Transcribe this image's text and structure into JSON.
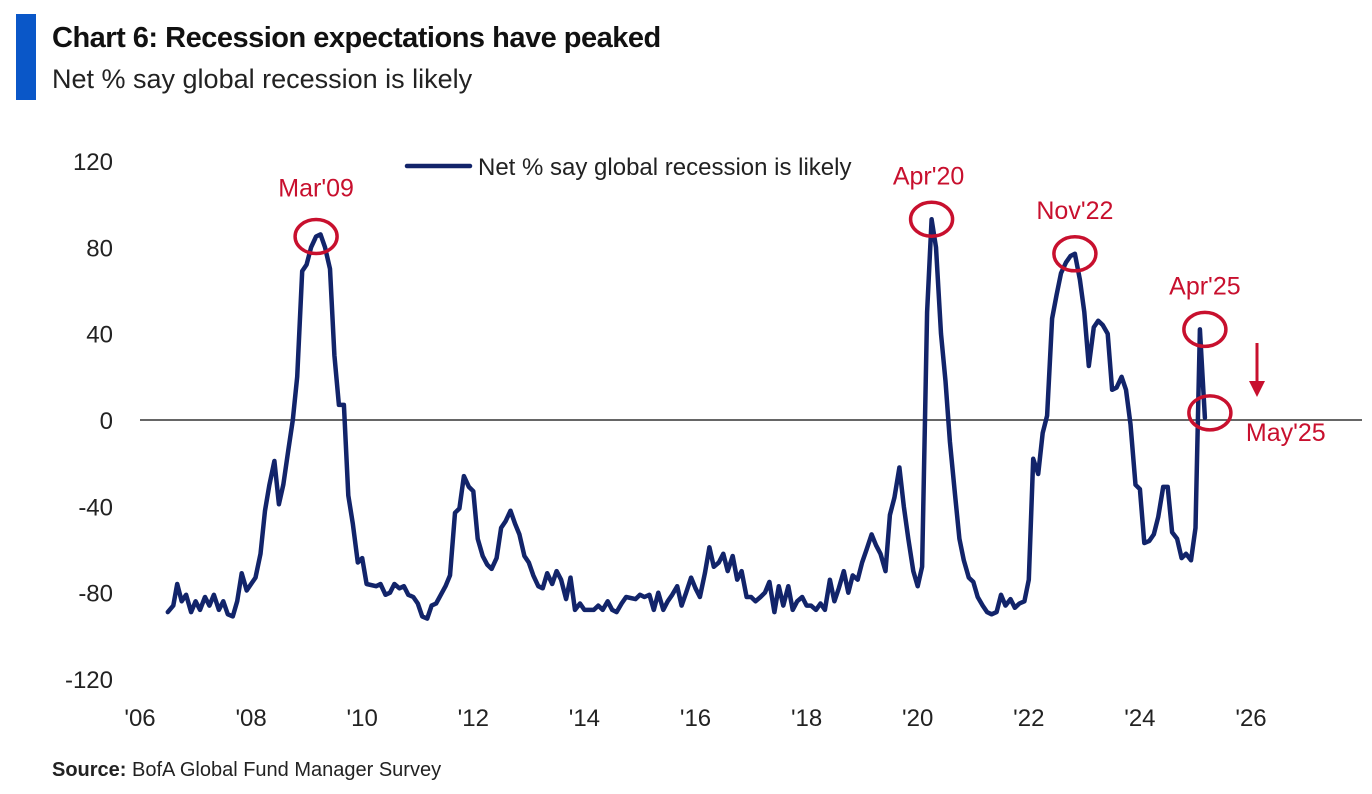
{
  "header": {
    "title": "Chart 6: Recession expectations have peaked",
    "subtitle": "Net % say global recession is likely"
  },
  "footer": {
    "source_label": "Source:",
    "source_text": " BofA Global Fund Manager Survey"
  },
  "colors": {
    "accent": "#0a57c8",
    "series": "#12246a",
    "annotation": "#c8102e",
    "axis": "#333333"
  },
  "chart_data": {
    "type": "line",
    "title": "Chart 6: Recession expectations have peaked",
    "subtitle": "Net % say global recession is likely",
    "xlabel": "",
    "ylabel": "",
    "xlim": [
      2006.0,
      2027.5
    ],
    "ylim": [
      -120,
      120
    ],
    "yticks": [
      120,
      80,
      40,
      0,
      -40,
      -80,
      -120
    ],
    "xticks": [
      {
        "value": 2006,
        "label": "'06"
      },
      {
        "value": 2008,
        "label": "'08"
      },
      {
        "value": 2010,
        "label": "'10"
      },
      {
        "value": 2012,
        "label": "'12"
      },
      {
        "value": 2014,
        "label": "'14"
      },
      {
        "value": 2016,
        "label": "'16"
      },
      {
        "value": 2018,
        "label": "'18"
      },
      {
        "value": 2020,
        "label": "'20"
      },
      {
        "value": 2022,
        "label": "'22"
      },
      {
        "value": 2024,
        "label": "'24"
      },
      {
        "value": 2026,
        "label": "'26"
      }
    ],
    "grid": false,
    "zero_line": true,
    "legend": {
      "position": "top-center"
    },
    "series": [
      {
        "name": "Net % say global recession is likely",
        "points": [
          [
            2006.5,
            -89
          ],
          [
            2006.6,
            -86
          ],
          [
            2006.67,
            -76
          ],
          [
            2006.75,
            -84
          ],
          [
            2006.83,
            -81
          ],
          [
            2006.92,
            -89
          ],
          [
            2007.0,
            -84
          ],
          [
            2007.08,
            -88
          ],
          [
            2007.17,
            -82
          ],
          [
            2007.25,
            -86
          ],
          [
            2007.33,
            -81
          ],
          [
            2007.42,
            -88
          ],
          [
            2007.5,
            -84
          ],
          [
            2007.58,
            -90
          ],
          [
            2007.67,
            -91
          ],
          [
            2007.75,
            -84
          ],
          [
            2007.83,
            -71
          ],
          [
            2007.92,
            -79
          ],
          [
            2008.0,
            -76
          ],
          [
            2008.08,
            -73
          ],
          [
            2008.17,
            -62
          ],
          [
            2008.25,
            -42
          ],
          [
            2008.33,
            -30
          ],
          [
            2008.42,
            -19
          ],
          [
            2008.5,
            -39
          ],
          [
            2008.58,
            -30
          ],
          [
            2008.67,
            -14
          ],
          [
            2008.75,
            0
          ],
          [
            2008.83,
            20
          ],
          [
            2008.92,
            69
          ],
          [
            2009.0,
            72
          ],
          [
            2009.08,
            80
          ],
          [
            2009.17,
            85
          ],
          [
            2009.25,
            86
          ],
          [
            2009.33,
            80
          ],
          [
            2009.42,
            70
          ],
          [
            2009.5,
            30
          ],
          [
            2009.58,
            7
          ],
          [
            2009.67,
            7
          ],
          [
            2009.75,
            -35
          ],
          [
            2009.83,
            -48
          ],
          [
            2009.92,
            -66
          ],
          [
            2010.0,
            -64
          ],
          [
            2010.08,
            -76
          ],
          [
            2010.25,
            -77
          ],
          [
            2010.33,
            -76
          ],
          [
            2010.42,
            -81
          ],
          [
            2010.5,
            -80
          ],
          [
            2010.58,
            -76
          ],
          [
            2010.67,
            -78
          ],
          [
            2010.75,
            -77
          ],
          [
            2010.83,
            -81
          ],
          [
            2010.92,
            -82
          ],
          [
            2011.0,
            -85
          ],
          [
            2011.08,
            -91
          ],
          [
            2011.17,
            -92
          ],
          [
            2011.25,
            -86
          ],
          [
            2011.33,
            -85
          ],
          [
            2011.5,
            -77
          ],
          [
            2011.58,
            -72
          ],
          [
            2011.67,
            -43
          ],
          [
            2011.75,
            -41
          ],
          [
            2011.83,
            -26
          ],
          [
            2011.92,
            -31
          ],
          [
            2012.0,
            -33
          ],
          [
            2012.08,
            -55
          ],
          [
            2012.17,
            -63
          ],
          [
            2012.25,
            -67
          ],
          [
            2012.33,
            -69
          ],
          [
            2012.42,
            -64
          ],
          [
            2012.5,
            -50
          ],
          [
            2012.58,
            -47
          ],
          [
            2012.67,
            -42
          ],
          [
            2012.75,
            -48
          ],
          [
            2012.83,
            -53
          ],
          [
            2012.92,
            -63
          ],
          [
            2013.0,
            -66
          ],
          [
            2013.08,
            -72
          ],
          [
            2013.17,
            -77
          ],
          [
            2013.25,
            -78
          ],
          [
            2013.33,
            -71
          ],
          [
            2013.42,
            -76
          ],
          [
            2013.5,
            -70
          ],
          [
            2013.58,
            -74
          ],
          [
            2013.67,
            -83
          ],
          [
            2013.75,
            -73
          ],
          [
            2013.83,
            -88
          ],
          [
            2013.92,
            -85
          ],
          [
            2014.0,
            -88
          ],
          [
            2014.17,
            -88
          ],
          [
            2014.25,
            -86
          ],
          [
            2014.33,
            -88
          ],
          [
            2014.42,
            -84
          ],
          [
            2014.5,
            -88
          ],
          [
            2014.58,
            -89
          ],
          [
            2014.67,
            -85
          ],
          [
            2014.75,
            -82
          ],
          [
            2014.92,
            -83
          ],
          [
            2015.0,
            -81
          ],
          [
            2015.08,
            -82
          ],
          [
            2015.17,
            -81
          ],
          [
            2015.25,
            -88
          ],
          [
            2015.33,
            -80
          ],
          [
            2015.42,
            -88
          ],
          [
            2015.5,
            -84
          ],
          [
            2015.58,
            -81
          ],
          [
            2015.67,
            -77
          ],
          [
            2015.75,
            -86
          ],
          [
            2015.83,
            -80
          ],
          [
            2015.92,
            -73
          ],
          [
            2016.0,
            -78
          ],
          [
            2016.08,
            -82
          ],
          [
            2016.17,
            -71
          ],
          [
            2016.25,
            -59
          ],
          [
            2016.33,
            -68
          ],
          [
            2016.42,
            -66
          ],
          [
            2016.5,
            -62
          ],
          [
            2016.58,
            -70
          ],
          [
            2016.67,
            -63
          ],
          [
            2016.75,
            -74
          ],
          [
            2016.83,
            -70
          ],
          [
            2016.92,
            -82
          ],
          [
            2017.0,
            -82
          ],
          [
            2017.08,
            -84
          ],
          [
            2017.17,
            -82
          ],
          [
            2017.25,
            -80
          ],
          [
            2017.33,
            -75
          ],
          [
            2017.42,
            -89
          ],
          [
            2017.5,
            -77
          ],
          [
            2017.58,
            -86
          ],
          [
            2017.67,
            -77
          ],
          [
            2017.75,
            -88
          ],
          [
            2017.83,
            -84
          ],
          [
            2017.92,
            -82
          ],
          [
            2018.0,
            -86
          ],
          [
            2018.08,
            -86
          ],
          [
            2018.17,
            -88
          ],
          [
            2018.25,
            -85
          ],
          [
            2018.33,
            -88
          ],
          [
            2018.42,
            -74
          ],
          [
            2018.5,
            -84
          ],
          [
            2018.58,
            -78
          ],
          [
            2018.67,
            -70
          ],
          [
            2018.75,
            -80
          ],
          [
            2018.83,
            -72
          ],
          [
            2018.92,
            -74
          ],
          [
            2019.0,
            -66
          ],
          [
            2019.08,
            -60
          ],
          [
            2019.17,
            -53
          ],
          [
            2019.25,
            -58
          ],
          [
            2019.33,
            -62
          ],
          [
            2019.42,
            -70
          ],
          [
            2019.5,
            -44
          ],
          [
            2019.58,
            -36
          ],
          [
            2019.67,
            -22
          ],
          [
            2019.75,
            -40
          ],
          [
            2019.83,
            -55
          ],
          [
            2019.92,
            -70
          ],
          [
            2020.0,
            -77
          ],
          [
            2020.08,
            -68
          ],
          [
            2020.17,
            50
          ],
          [
            2020.25,
            93
          ],
          [
            2020.33,
            80
          ],
          [
            2020.42,
            40
          ],
          [
            2020.5,
            18
          ],
          [
            2020.58,
            -10
          ],
          [
            2020.67,
            -34
          ],
          [
            2020.75,
            -55
          ],
          [
            2020.83,
            -65
          ],
          [
            2020.92,
            -73
          ],
          [
            2021.0,
            -75
          ],
          [
            2021.08,
            -82
          ],
          [
            2021.17,
            -86
          ],
          [
            2021.25,
            -89
          ],
          [
            2021.33,
            -90
          ],
          [
            2021.42,
            -89
          ],
          [
            2021.5,
            -81
          ],
          [
            2021.58,
            -86
          ],
          [
            2021.67,
            -83
          ],
          [
            2021.75,
            -87
          ],
          [
            2021.83,
            -85
          ],
          [
            2021.92,
            -84
          ],
          [
            2022.0,
            -74
          ],
          [
            2022.08,
            -18
          ],
          [
            2022.17,
            -25
          ],
          [
            2022.25,
            -6
          ],
          [
            2022.33,
            2
          ],
          [
            2022.42,
            47
          ],
          [
            2022.5,
            58
          ],
          [
            2022.58,
            68
          ],
          [
            2022.67,
            73
          ],
          [
            2022.75,
            76
          ],
          [
            2022.83,
            77
          ],
          [
            2022.92,
            65
          ],
          [
            2023.0,
            50
          ],
          [
            2023.08,
            25
          ],
          [
            2023.17,
            43
          ],
          [
            2023.25,
            46
          ],
          [
            2023.33,
            44
          ],
          [
            2023.42,
            40
          ],
          [
            2023.5,
            14
          ],
          [
            2023.58,
            15
          ],
          [
            2023.67,
            20
          ],
          [
            2023.75,
            14
          ],
          [
            2023.83,
            -2
          ],
          [
            2023.92,
            -30
          ],
          [
            2024.0,
            -32
          ],
          [
            2024.08,
            -57
          ],
          [
            2024.17,
            -56
          ],
          [
            2024.25,
            -53
          ],
          [
            2024.33,
            -45
          ],
          [
            2024.42,
            -31
          ],
          [
            2024.5,
            -31
          ],
          [
            2024.58,
            -52
          ],
          [
            2024.67,
            -55
          ],
          [
            2024.75,
            -64
          ],
          [
            2024.83,
            -62
          ],
          [
            2024.92,
            -65
          ],
          [
            2025.0,
            -50
          ],
          [
            2025.08,
            42
          ],
          [
            2025.17,
            1
          ]
        ]
      }
    ],
    "annotations": [
      {
        "label": "Mar'09",
        "x": 2009.17,
        "y": 85
      },
      {
        "label": "Apr'20",
        "x": 2020.25,
        "y": 93
      },
      {
        "label": "Nov'22",
        "x": 2022.83,
        "y": 77
      },
      {
        "label": "Apr'25",
        "x": 2025.08,
        "y": 42
      },
      {
        "label": "May'25",
        "x": 2025.17,
        "y": 1
      }
    ]
  }
}
